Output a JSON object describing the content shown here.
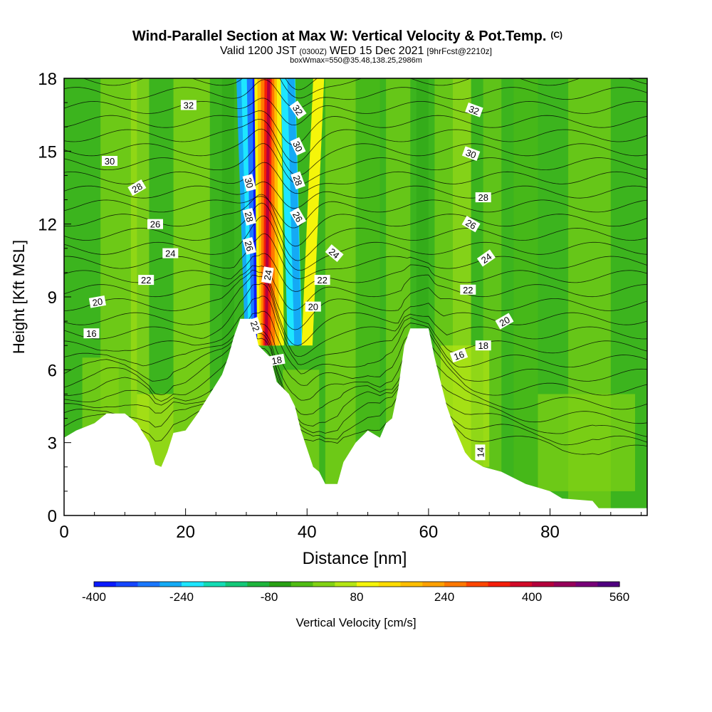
{
  "title": {
    "main": "Wind-Parallel Section at Max W: Vertical Velocity & Pot.Temp.",
    "main_suffix": "(C)",
    "valid_prefix": "Valid 1200 JST",
    "valid_z": "(0300Z)",
    "valid_date": "WED 15 Dec 2021",
    "valid_fcst": "[9hrFcst@2210z]",
    "box": "boxWmax=550@35.48,138.25,2986m"
  },
  "colorbar": {
    "label": "Vertical Velocity [cm/s]",
    "tick_labels": [
      "-400",
      "-240",
      "-80",
      "80",
      "240",
      "400",
      "560"
    ],
    "colors": [
      "#0a1aff",
      "#1546ff",
      "#1a78ff",
      "#14aaf5",
      "#1ee6ff",
      "#14dcb4",
      "#14c878",
      "#1eb43c",
      "#28a014",
      "#50bc14",
      "#82d214",
      "#b4e614",
      "#f5f50a",
      "#ffdc00",
      "#ffbe00",
      "#ffa000",
      "#ff7800",
      "#ff4600",
      "#f51e0a",
      "#d20a28",
      "#b4003c",
      "#96005a",
      "#780078",
      "#500080"
    ]
  },
  "chart_data": {
    "type": "heatmap",
    "variables": [
      "Vertical Velocity [cm/s] (color fill)",
      "Potential Temperature [C] (contours)"
    ],
    "xlabel": "Distance [nm]",
    "ylabel": "Height [Kft MSL]",
    "xlim": [
      0,
      96
    ],
    "ylim": [
      0,
      18
    ],
    "x_ticks": [
      0,
      20,
      40,
      60,
      80
    ],
    "y_ticks": [
      0,
      3,
      6,
      9,
      12,
      15,
      18
    ],
    "terrain_height_kft": [
      [
        0,
        3.2
      ],
      [
        2,
        3.5
      ],
      [
        5,
        3.8
      ],
      [
        7,
        4.2
      ],
      [
        10,
        4.2
      ],
      [
        12,
        3.8
      ],
      [
        14,
        3.0
      ],
      [
        15,
        2.1
      ],
      [
        16,
        2.0
      ],
      [
        17,
        2.6
      ],
      [
        18,
        3.4
      ],
      [
        20,
        3.5
      ],
      [
        22,
        4.2
      ],
      [
        24,
        5.0
      ],
      [
        26,
        5.8
      ],
      [
        27,
        6.5
      ],
      [
        28,
        7.4
      ],
      [
        29,
        8.1
      ],
      [
        31,
        8.1
      ],
      [
        32,
        7.0
      ],
      [
        34,
        6.5
      ],
      [
        35,
        5.5
      ],
      [
        37,
        5.0
      ],
      [
        38,
        4.5
      ],
      [
        39,
        3.5
      ],
      [
        41,
        2.0
      ],
      [
        42,
        1.8
      ],
      [
        43,
        1.3
      ],
      [
        45,
        1.3
      ],
      [
        46,
        2.2
      ],
      [
        48,
        3.0
      ],
      [
        50,
        3.5
      ],
      [
        52,
        3.2
      ],
      [
        53,
        3.8
      ],
      [
        54,
        4.0
      ],
      [
        55,
        5.2
      ],
      [
        56,
        7.0
      ],
      [
        57,
        7.7
      ],
      [
        60,
        7.7
      ],
      [
        61,
        6.5
      ],
      [
        62,
        5.5
      ],
      [
        63,
        4.5
      ],
      [
        64,
        3.8
      ],
      [
        65,
        3.2
      ],
      [
        66,
        2.6
      ],
      [
        67,
        2.3
      ],
      [
        69,
        2.0
      ],
      [
        72,
        1.8
      ],
      [
        76,
        1.3
      ],
      [
        80,
        1.0
      ],
      [
        82,
        0.7
      ],
      [
        87,
        0.6
      ],
      [
        88,
        0.3
      ],
      [
        96,
        0.3
      ]
    ],
    "updraft_band": {
      "x_at_bottom_nm": 33,
      "x_at_top_nm": 35,
      "max_cm_s": 560
    },
    "downdraft_band": {
      "x_at_bottom_nm": 31.5,
      "x_at_top_nm": 31,
      "min_cm_s": -400
    },
    "contour_labels": [
      {
        "text": "32",
        "x": 20.5,
        "y": 16.9,
        "angle": 0
      },
      {
        "text": "30",
        "x": 7.5,
        "y": 14.6,
        "angle": 0
      },
      {
        "text": "28",
        "x": 12,
        "y": 13.5,
        "angle": -30
      },
      {
        "text": "26",
        "x": 15,
        "y": 12.0,
        "angle": 0
      },
      {
        "text": "24",
        "x": 17.5,
        "y": 10.8,
        "angle": 0
      },
      {
        "text": "22",
        "x": 13.5,
        "y": 9.7,
        "angle": 0
      },
      {
        "text": "20",
        "x": 5.5,
        "y": 8.8,
        "angle": -10
      },
      {
        "text": "16",
        "x": 4.5,
        "y": 7.5,
        "angle": 0
      },
      {
        "text": "30",
        "x": 30.5,
        "y": 13.7,
        "angle": 75
      },
      {
        "text": "28",
        "x": 30.5,
        "y": 12.3,
        "angle": 75
      },
      {
        "text": "26",
        "x": 30.5,
        "y": 11.1,
        "angle": 75
      },
      {
        "text": "24",
        "x": 33.5,
        "y": 9.9,
        "angle": -80
      },
      {
        "text": "22",
        "x": 31.5,
        "y": 7.8,
        "angle": 70
      },
      {
        "text": "18",
        "x": 35,
        "y": 6.4,
        "angle": -10
      },
      {
        "text": "32",
        "x": 38.5,
        "y": 16.7,
        "angle": 55
      },
      {
        "text": "30",
        "x": 38.5,
        "y": 15.2,
        "angle": 65
      },
      {
        "text": "28",
        "x": 38.5,
        "y": 13.8,
        "angle": 70
      },
      {
        "text": "26",
        "x": 38.5,
        "y": 12.3,
        "angle": 60
      },
      {
        "text": "24",
        "x": 44.5,
        "y": 10.8,
        "angle": 40
      },
      {
        "text": "22",
        "x": 42.5,
        "y": 9.7,
        "angle": 0
      },
      {
        "text": "20",
        "x": 41,
        "y": 8.6,
        "angle": 0
      },
      {
        "text": "32",
        "x": 67.5,
        "y": 16.7,
        "angle": 20
      },
      {
        "text": "30",
        "x": 67,
        "y": 14.9,
        "angle": 20
      },
      {
        "text": "28",
        "x": 69,
        "y": 13.1,
        "angle": 0
      },
      {
        "text": "26",
        "x": 67,
        "y": 12.0,
        "angle": 30
      },
      {
        "text": "24",
        "x": 69.5,
        "y": 10.6,
        "angle": -35
      },
      {
        "text": "22",
        "x": 66.5,
        "y": 9.3,
        "angle": 0
      },
      {
        "text": "20",
        "x": 72.5,
        "y": 8.0,
        "angle": -30
      },
      {
        "text": "18",
        "x": 69,
        "y": 7.0,
        "angle": 0
      },
      {
        "text": "16",
        "x": 65,
        "y": 6.6,
        "angle": -20
      },
      {
        "text": "14",
        "x": 68.5,
        "y": 2.6,
        "angle": -90
      }
    ]
  }
}
